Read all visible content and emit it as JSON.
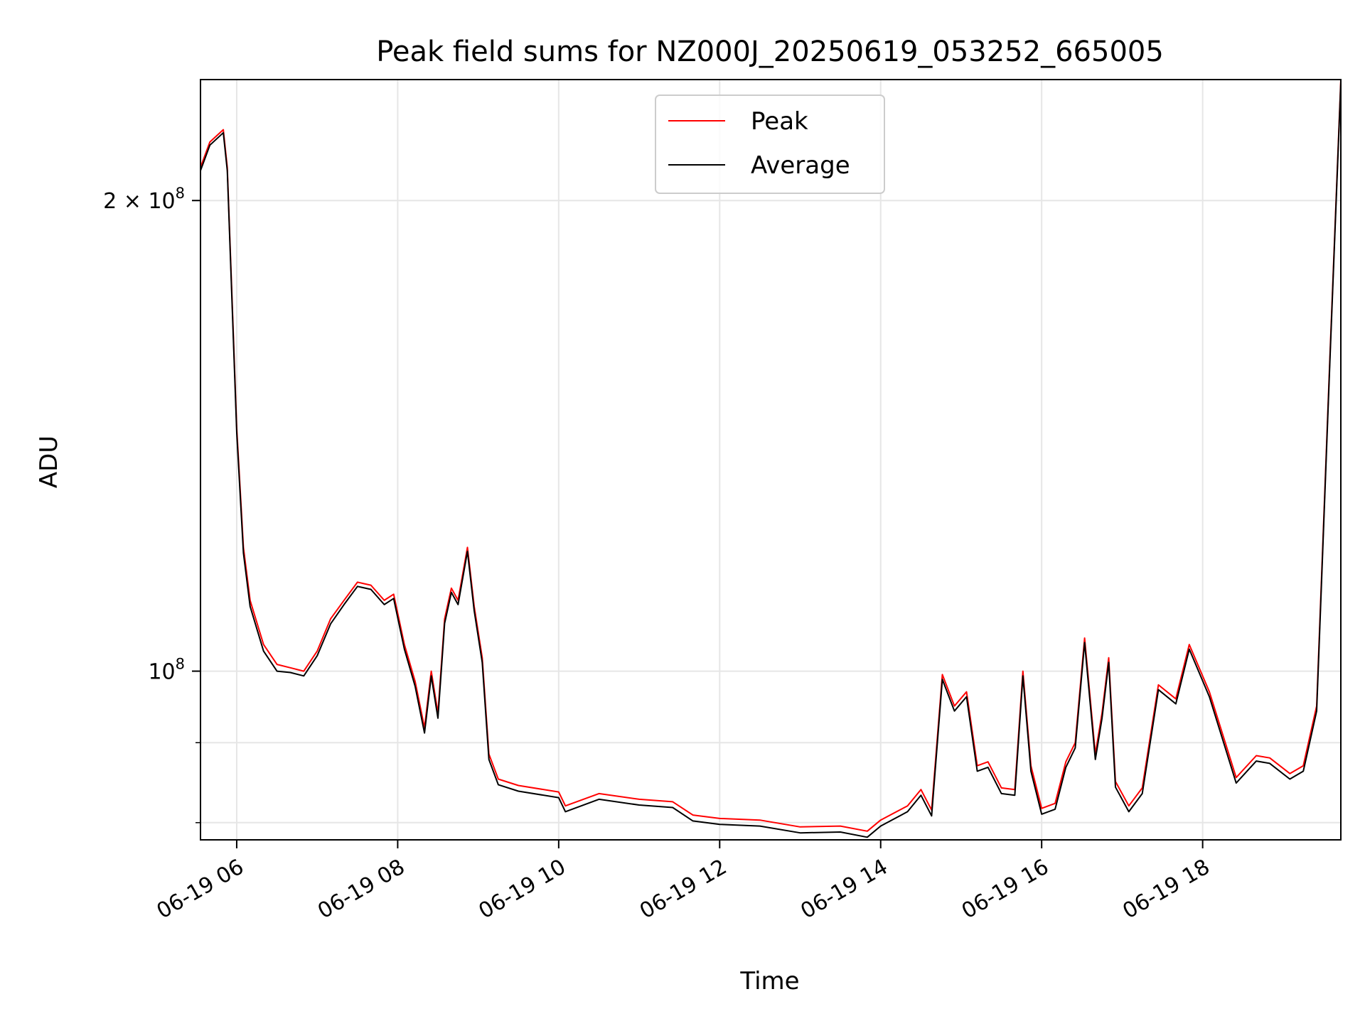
{
  "chart_data": {
    "type": "line",
    "title": "Peak field sums for NZ000J_20250619_053252_665005",
    "xlabel": "Time",
    "ylabel": "ADU",
    "y_scale": "log",
    "ylim": [
      78000000,
      239000000
    ],
    "xlim": [
      "2025-06-19 05:33",
      "2025-06-19 19:43"
    ],
    "x_ticks": [
      {
        "value": "2025-06-19 06:00",
        "label": "06-19 06"
      },
      {
        "value": "2025-06-19 08:00",
        "label": "06-19 08"
      },
      {
        "value": "2025-06-19 10:00",
        "label": "06-19 10"
      },
      {
        "value": "2025-06-19 12:00",
        "label": "06-19 12"
      },
      {
        "value": "2025-06-19 14:00",
        "label": "06-19 14"
      },
      {
        "value": "2025-06-19 16:00",
        "label": "06-19 16"
      },
      {
        "value": "2025-06-19 18:00",
        "label": "06-19 18"
      }
    ],
    "y_major_ticks": [
      {
        "value": 100000000,
        "base": "10",
        "exp": "8",
        "mantissa": ""
      },
      {
        "value": 200000000,
        "base": "10",
        "exp": "8",
        "mantissa": "2 × "
      }
    ],
    "y_minor_ticks": [
      80000000,
      90000000
    ],
    "grid": true,
    "legend": {
      "position": "top-center"
    },
    "series": [
      {
        "name": "Peak",
        "color": "#ff0000",
        "x": [
          "2025-06-19 05:33",
          "2025-06-19 05:40",
          "2025-06-19 05:50",
          "2025-06-19 05:53",
          "2025-06-19 06:00",
          "2025-06-19 06:05",
          "2025-06-19 06:10",
          "2025-06-19 06:20",
          "2025-06-19 06:30",
          "2025-06-19 06:40",
          "2025-06-19 06:50",
          "2025-06-19 07:00",
          "2025-06-19 07:10",
          "2025-06-19 07:20",
          "2025-06-19 07:30",
          "2025-06-19 07:40",
          "2025-06-19 07:50",
          "2025-06-19 07:57",
          "2025-06-19 08:05",
          "2025-06-19 08:13",
          "2025-06-19 08:20",
          "2025-06-19 08:25",
          "2025-06-19 08:30",
          "2025-06-19 08:35",
          "2025-06-19 08:40",
          "2025-06-19 08:45",
          "2025-06-19 08:52",
          "2025-06-19 08:57",
          "2025-06-19 09:03",
          "2025-06-19 09:08",
          "2025-06-19 09:15",
          "2025-06-19 09:30",
          "2025-06-19 10:00",
          "2025-06-19 10:05",
          "2025-06-19 10:30",
          "2025-06-19 11:00",
          "2025-06-19 11:25",
          "2025-06-19 11:40",
          "2025-06-19 12:00",
          "2025-06-19 12:30",
          "2025-06-19 13:00",
          "2025-06-19 13:30",
          "2025-06-19 13:50",
          "2025-06-19 14:00",
          "2025-06-19 14:20",
          "2025-06-19 14:30",
          "2025-06-19 14:38",
          "2025-06-19 14:46",
          "2025-06-19 14:55",
          "2025-06-19 15:04",
          "2025-06-19 15:12",
          "2025-06-19 15:20",
          "2025-06-19 15:30",
          "2025-06-19 15:40",
          "2025-06-19 15:46",
          "2025-06-19 15:52",
          "2025-06-19 16:00",
          "2025-06-19 16:10",
          "2025-06-19 16:18",
          "2025-06-19 16:25",
          "2025-06-19 16:32",
          "2025-06-19 16:40",
          "2025-06-19 16:45",
          "2025-06-19 16:50",
          "2025-06-19 16:55",
          "2025-06-19 17:05",
          "2025-06-19 17:15",
          "2025-06-19 17:27",
          "2025-06-19 17:40",
          "2025-06-19 17:50",
          "2025-06-19 18:05",
          "2025-06-19 18:25",
          "2025-06-19 18:40",
          "2025-06-19 18:50",
          "2025-06-19 19:05",
          "2025-06-19 19:15",
          "2025-06-19 19:25",
          "2025-06-19 19:35",
          "2025-06-19 19:43"
        ],
        "values": [
          210000000,
          218000000,
          222000000,
          210000000,
          143000000,
          120000000,
          111000000,
          104000000,
          101000000,
          100500000,
          100000000,
          103000000,
          108000000,
          111000000,
          114000000,
          113500000,
          111000000,
          112000000,
          104000000,
          98500000,
          92000000,
          100000000,
          94000000,
          108000000,
          113000000,
          111000000,
          120000000,
          110000000,
          102000000,
          88500000,
          85300000,
          84500000,
          83700000,
          82000000,
          83500000,
          82800000,
          82500000,
          80900000,
          80500000,
          80300000,
          79500000,
          79600000,
          79000000,
          80300000,
          82000000,
          84000000,
          81500000,
          99500000,
          95000000,
          97000000,
          87000000,
          87500000,
          84200000,
          84000000,
          100000000,
          87000000,
          81700000,
          82300000,
          87500000,
          90000000,
          105000000,
          88500000,
          94000000,
          102000000,
          85000000,
          82000000,
          84200000,
          98000000,
          96000000,
          104000000,
          97000000,
          85500000,
          88300000,
          88000000,
          86000000,
          87000000,
          95000000,
          160000000,
          239000000
        ]
      },
      {
        "name": "Average",
        "color": "#000000",
        "x": [
          "2025-06-19 05:33",
          "2025-06-19 05:40",
          "2025-06-19 05:50",
          "2025-06-19 05:53",
          "2025-06-19 06:00",
          "2025-06-19 06:05",
          "2025-06-19 06:10",
          "2025-06-19 06:20",
          "2025-06-19 06:30",
          "2025-06-19 06:40",
          "2025-06-19 06:50",
          "2025-06-19 07:00",
          "2025-06-19 07:10",
          "2025-06-19 07:20",
          "2025-06-19 07:30",
          "2025-06-19 07:40",
          "2025-06-19 07:50",
          "2025-06-19 07:57",
          "2025-06-19 08:05",
          "2025-06-19 08:13",
          "2025-06-19 08:20",
          "2025-06-19 08:25",
          "2025-06-19 08:30",
          "2025-06-19 08:35",
          "2025-06-19 08:40",
          "2025-06-19 08:45",
          "2025-06-19 08:52",
          "2025-06-19 08:57",
          "2025-06-19 09:03",
          "2025-06-19 09:08",
          "2025-06-19 09:15",
          "2025-06-19 09:30",
          "2025-06-19 10:00",
          "2025-06-19 10:05",
          "2025-06-19 10:30",
          "2025-06-19 11:00",
          "2025-06-19 11:25",
          "2025-06-19 11:40",
          "2025-06-19 12:00",
          "2025-06-19 12:30",
          "2025-06-19 13:00",
          "2025-06-19 13:30",
          "2025-06-19 13:50",
          "2025-06-19 14:00",
          "2025-06-19 14:20",
          "2025-06-19 14:30",
          "2025-06-19 14:38",
          "2025-06-19 14:46",
          "2025-06-19 14:55",
          "2025-06-19 15:04",
          "2025-06-19 15:12",
          "2025-06-19 15:20",
          "2025-06-19 15:30",
          "2025-06-19 15:40",
          "2025-06-19 15:46",
          "2025-06-19 15:52",
          "2025-06-19 16:00",
          "2025-06-19 16:10",
          "2025-06-19 16:18",
          "2025-06-19 16:25",
          "2025-06-19 16:32",
          "2025-06-19 16:40",
          "2025-06-19 16:45",
          "2025-06-19 16:50",
          "2025-06-19 16:55",
          "2025-06-19 17:05",
          "2025-06-19 17:15",
          "2025-06-19 17:27",
          "2025-06-19 17:40",
          "2025-06-19 17:50",
          "2025-06-19 18:05",
          "2025-06-19 18:25",
          "2025-06-19 18:40",
          "2025-06-19 18:50",
          "2025-06-19 19:05",
          "2025-06-19 19:15",
          "2025-06-19 19:25",
          "2025-06-19 19:35",
          "2025-06-19 19:43"
        ],
        "values": [
          209000000,
          217000000,
          221000000,
          209000000,
          142000000,
          119000000,
          110000000,
          103000000,
          100000000,
          99800000,
          99300000,
          102300000,
          107200000,
          110300000,
          113300000,
          112800000,
          110300000,
          111300000,
          103300000,
          97800000,
          91300000,
          99300000,
          93300000,
          107300000,
          112300000,
          110300000,
          119300000,
          109300000,
          101300000,
          87800000,
          84600000,
          83800000,
          83000000,
          81300000,
          82800000,
          82100000,
          81800000,
          80200000,
          79800000,
          79600000,
          78800000,
          78900000,
          78300000,
          79600000,
          81300000,
          83300000,
          80800000,
          98800000,
          94300000,
          96300000,
          86300000,
          86800000,
          83500000,
          83300000,
          99300000,
          86300000,
          81000000,
          81600000,
          86800000,
          89300000,
          104300000,
          87800000,
          93300000,
          101300000,
          84300000,
          81300000,
          83500000,
          97300000,
          95300000,
          103300000,
          96300000,
          84800000,
          87600000,
          87300000,
          85300000,
          86300000,
          94300000,
          159000000,
          238000000
        ]
      }
    ]
  }
}
